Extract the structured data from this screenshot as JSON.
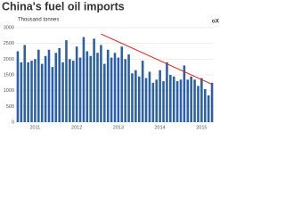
{
  "chart_data": {
    "type": "bar",
    "title": "China's fuel oil imports",
    "subtitle": "Thousand tonnes",
    "logo": "oX",
    "categories": [
      null,
      null,
      null,
      null,
      null,
      "2011",
      null,
      null,
      null,
      null,
      null,
      null,
      null,
      null,
      null,
      null,
      null,
      "2012",
      null,
      null,
      null,
      null,
      null,
      null,
      null,
      null,
      null,
      null,
      null,
      "2013",
      null,
      null,
      null,
      null,
      null,
      null,
      null,
      null,
      null,
      null,
      null,
      "2014",
      null,
      null,
      null,
      null,
      null,
      null,
      null,
      null,
      null,
      null,
      null,
      "2015",
      null,
      null,
      null
    ],
    "values": [
      2250,
      1900,
      2450,
      1900,
      1950,
      2000,
      2300,
      1850,
      2100,
      2300,
      1750,
      2200,
      2350,
      1900,
      2600,
      2000,
      1950,
      2400,
      2050,
      2700,
      2250,
      2100,
      2650,
      2200,
      2450,
      1850,
      2300,
      2050,
      2200,
      2050,
      2400,
      2000,
      2150,
      1550,
      1650,
      1450,
      1950,
      1400,
      1600,
      1250,
      1350,
      1650,
      1300,
      1900,
      1500,
      1450,
      1300,
      1350,
      1800,
      1350,
      1450,
      1350,
      1150,
      1400,
      1050,
      850,
      1250
    ],
    "color": "#2b5fa9",
    "ylim": [
      0,
      3000
    ],
    "yticks": [
      0,
      500,
      1000,
      1500,
      2000,
      2500,
      3000
    ],
    "grid": true,
    "trend": {
      "x": [
        24,
        56
      ],
      "values": [
        2800,
        1200
      ],
      "color": "#e2231a"
    }
  }
}
